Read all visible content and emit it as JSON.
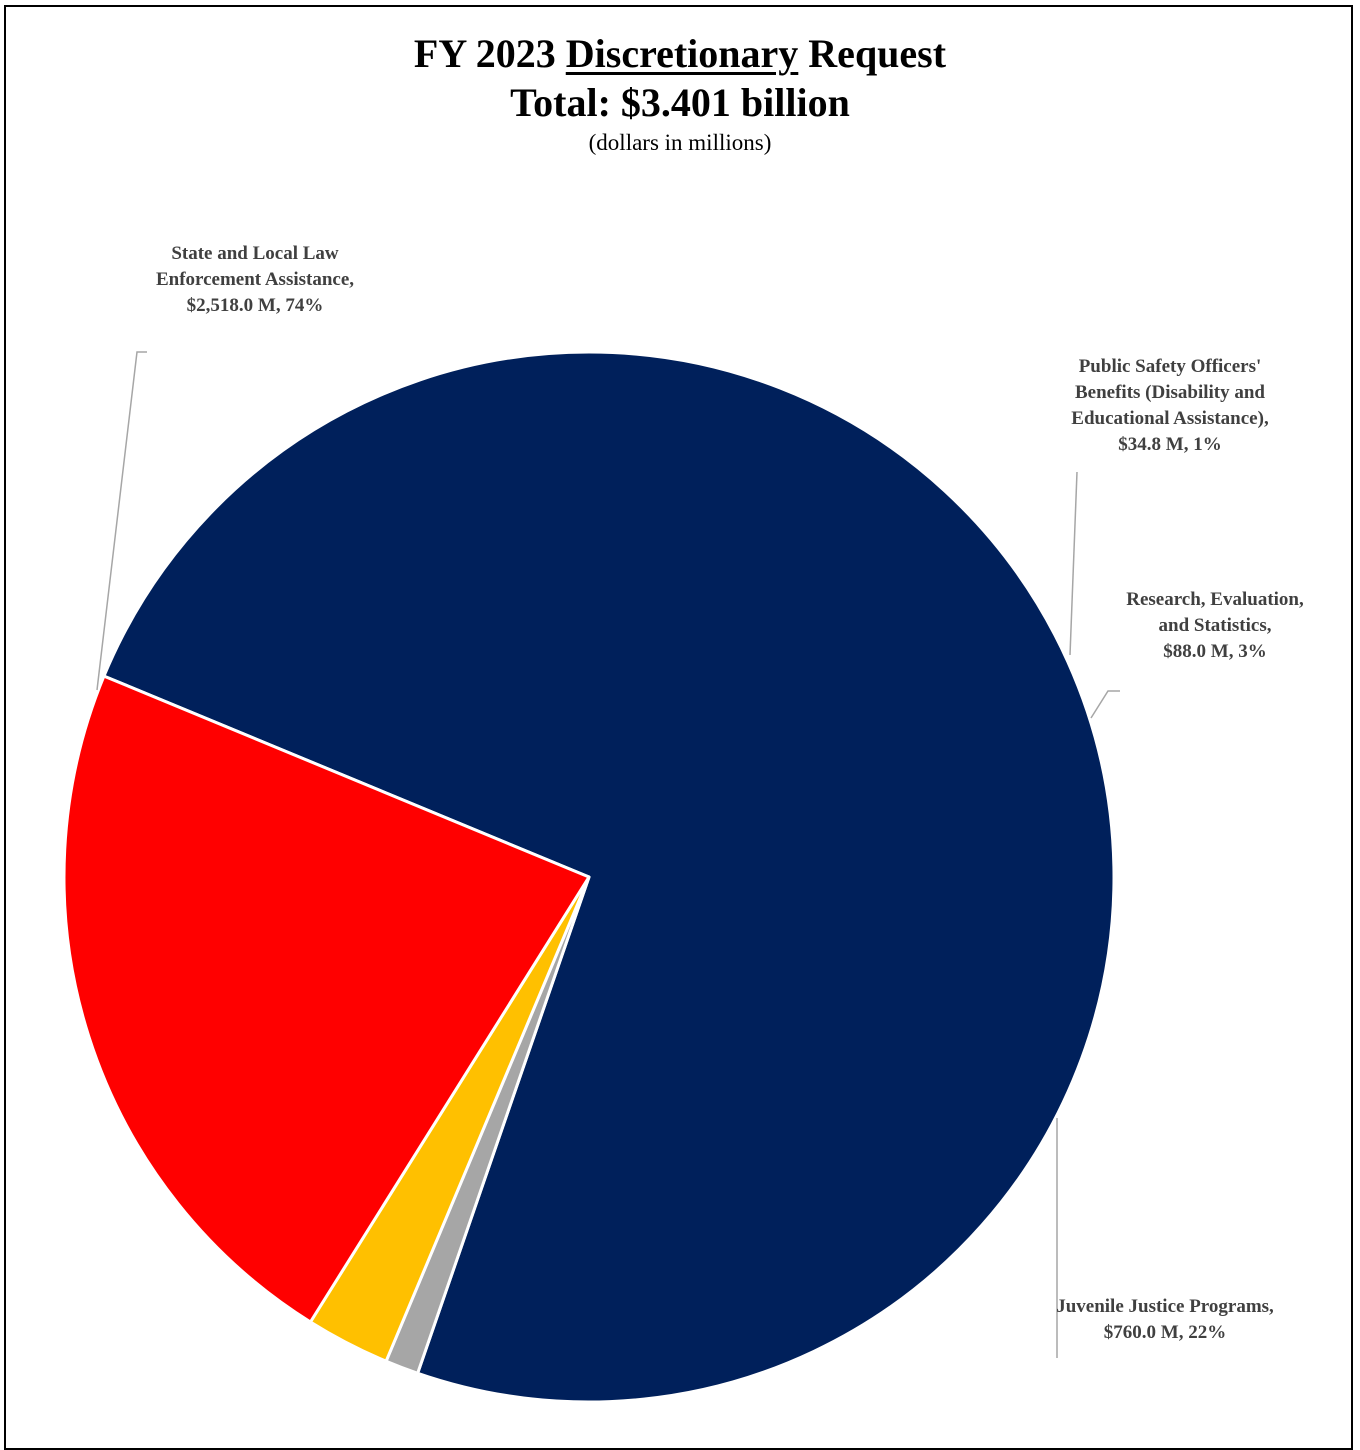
{
  "title": {
    "prefix": "FY 2023 ",
    "emphasis": "Discretionary",
    "suffix": " Request",
    "line2": "Total: $3.401 billion",
    "subtitle": "(dollars in millions)"
  },
  "chart_data": {
    "type": "pie",
    "title": "FY 2023 Discretionary Request Total: $3.401 billion",
    "subtitle": "(dollars in millions)",
    "units": "dollars in millions",
    "slices": [
      {
        "name": "State and Local Law Enforcement Assistance",
        "value": 2518.0,
        "percent": 74,
        "color": "#00205B",
        "label_lines": [
          "State and Local Law",
          "Enforcement Assistance,",
          "$2,518.0 M, 74%"
        ]
      },
      {
        "name": "Public Safety Officers' Benefits (Disability and Educational Assistance)",
        "value": 34.8,
        "percent": 1,
        "color": "#A6A6A6",
        "label_lines": [
          "Public Safety Officers'",
          "Benefits (Disability and",
          "Educational Assistance),",
          "$34.8 M, 1%"
        ]
      },
      {
        "name": "Research, Evaluation, and Statistics",
        "value": 88.0,
        "percent": 3,
        "color": "#FFC000",
        "label_lines": [
          "Research, Evaluation,",
          "and Statistics,",
          "$88.0 M, 3%"
        ]
      },
      {
        "name": "Juvenile Justice Programs",
        "value": 760.0,
        "percent": 22,
        "color": "#FF0000",
        "label_lines": [
          "Juvenile Justice Programs,",
          "$760.0 M, 22%"
        ]
      }
    ],
    "start_angle_deg": 157.5,
    "direction": "clockwise",
    "leader_color": "#A6A6A6"
  }
}
